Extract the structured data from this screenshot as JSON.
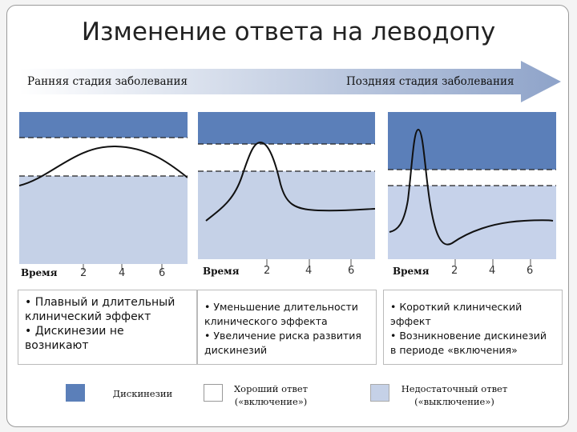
{
  "title": "Изменение ответа на леводопу",
  "stages": {
    "early": "Ранняя стадия заболевания",
    "late": "Поздняя стадия заболевания"
  },
  "colors": {
    "dyskinesia": "#5b7fb9",
    "good_on": "#ffffff",
    "off": "#c5d1e7",
    "off_late": "#c6d2ea"
  },
  "panels": [
    {
      "xlabel": "Время",
      "ticks": [
        "2",
        "4",
        "6"
      ],
      "notes": [
        "• Плавный и длительный клинический эффект",
        "• Дискинезии не возникают"
      ]
    },
    {
      "xlabel": "Время",
      "ticks": [
        "2",
        "4",
        "6"
      ],
      "notes": [
        "• Уменьшение длительности клинического эффекта",
        "• Увеличение риска развития дискинезий"
      ]
    },
    {
      "xlabel": "Время",
      "ticks": [
        "2",
        "4",
        "6"
      ],
      "notes": [
        "• Короткий клинический эффект",
        "• Возникновение дискинезий в периоде «включения»"
      ]
    }
  ],
  "legend": {
    "dyskinesia": "Дискинезии",
    "good_line1": "Хороший ответ",
    "good_line2": "(«включение»)",
    "poor_line1": "Недостаточный ответ",
    "poor_line2": "(«выключение»)"
  }
}
